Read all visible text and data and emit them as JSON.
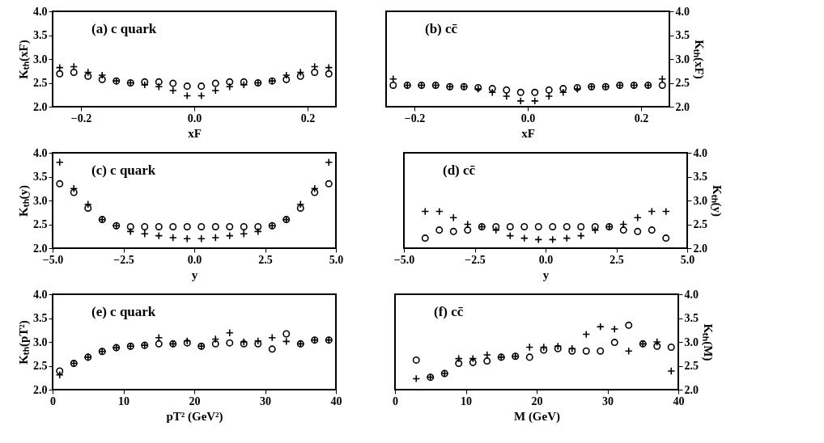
{
  "chart_data": [
    {
      "type": "scatter",
      "annotations": [
        "(a) c quark"
      ],
      "xlabel": "xF",
      "ylabel": "Kₜₕ(xF)",
      "x": [
        -0.2375,
        -0.2125,
        -0.1875,
        -0.1625,
        -0.1375,
        -0.1125,
        -0.0875,
        -0.0625,
        -0.0375,
        -0.0125,
        0.0125,
        0.0375,
        0.0625,
        0.0875,
        0.1125,
        0.1375,
        0.1625,
        0.1875,
        0.2125,
        0.2375
      ],
      "series": [
        {
          "color": "#000000",
          "marker": "circle",
          "values": [
            2.69,
            2.72,
            2.64,
            2.57,
            2.54,
            2.5,
            2.52,
            2.52,
            2.49,
            2.43,
            2.43,
            2.49,
            2.52,
            2.52,
            2.5,
            2.54,
            2.57,
            2.64,
            2.72,
            2.69
          ]
        },
        {
          "color": "#000000",
          "marker": "cross",
          "values": [
            2.82,
            2.84,
            2.72,
            2.66,
            2.54,
            2.5,
            2.46,
            2.42,
            2.34,
            2.23,
            2.23,
            2.34,
            2.42,
            2.46,
            2.5,
            2.54,
            2.66,
            2.72,
            2.84,
            2.82
          ]
        }
      ],
      "xlim": [
        -0.25,
        0.25
      ],
      "xticks": [
        {
          "value": -0.2,
          "label": "−0.2"
        },
        {
          "value": 0,
          "label": "0.0"
        },
        {
          "value": 0.2,
          "label": "0.2"
        }
      ],
      "ylim": [
        2,
        4
      ],
      "yticks": [
        {
          "value": 2,
          "label": "2.0"
        },
        {
          "value": 2.5,
          "label": "2.5"
        },
        {
          "value": 3,
          "label": "3.0"
        },
        {
          "value": 3.5,
          "label": "3.5"
        },
        {
          "value": 4,
          "label": "4.0"
        }
      ]
    },
    {
      "type": "scatter",
      "annotations": [
        "(b) cc̄"
      ],
      "xlabel": "xF",
      "y2label": "Kₜₕ(xF)",
      "x": [
        -0.2375,
        -0.2125,
        -0.1875,
        -0.1625,
        -0.1375,
        -0.1125,
        -0.0875,
        -0.0625,
        -0.0375,
        -0.0125,
        0.0125,
        0.0375,
        0.0625,
        0.0875,
        0.1125,
        0.1375,
        0.1625,
        0.1875,
        0.2125,
        0.2375
      ],
      "series": [
        {
          "color": "#000000",
          "marker": "circle",
          "axis": "y2",
          "values": [
            2.45,
            2.45,
            2.45,
            2.45,
            2.42,
            2.42,
            2.4,
            2.38,
            2.35,
            2.3,
            2.3,
            2.35,
            2.38,
            2.4,
            2.42,
            2.42,
            2.45,
            2.45,
            2.45,
            2.45
          ]
        },
        {
          "color": "#000000",
          "marker": "cross",
          "axis": "y2",
          "values": [
            2.58,
            2.45,
            2.45,
            2.45,
            2.42,
            2.42,
            2.37,
            2.3,
            2.22,
            2.12,
            2.12,
            2.22,
            2.3,
            2.37,
            2.42,
            2.42,
            2.45,
            2.45,
            2.45,
            2.58
          ]
        }
      ],
      "xlim": [
        -0.25,
        0.25
      ],
      "xticks": [
        {
          "value": -0.2,
          "label": "−0.2"
        },
        {
          "value": 0,
          "label": "0.0"
        },
        {
          "value": 0.2,
          "label": "0.2"
        }
      ],
      "y2lim": [
        2,
        4
      ],
      "y2ticks": [
        {
          "value": 2,
          "label": "2.0"
        },
        {
          "value": 2.5,
          "label": "2.5"
        },
        {
          "value": 3,
          "label": "3.0"
        },
        {
          "value": 3.5,
          "label": "3.5"
        },
        {
          "value": 4,
          "label": "4.0"
        }
      ]
    },
    {
      "type": "scatter",
      "annotations": [
        "(c) c quark"
      ],
      "xlabel": "y",
      "ylabel": "Kₜₕ(y)",
      "x": [
        -4.75,
        -4.25,
        -3.75,
        -3.25,
        -2.75,
        -2.25,
        -1.75,
        -1.25,
        -0.75,
        -0.25,
        0.25,
        0.75,
        1.25,
        1.75,
        2.25,
        2.75,
        3.25,
        3.75,
        4.25,
        4.75
      ],
      "series": [
        {
          "color": "#000000",
          "marker": "circle",
          "values": [
            3.35,
            3.17,
            2.84,
            2.6,
            2.47,
            2.45,
            2.45,
            2.45,
            2.45,
            2.45,
            2.45,
            2.45,
            2.45,
            2.45,
            2.45,
            2.47,
            2.6,
            2.84,
            3.17,
            3.35
          ]
        },
        {
          "color": "#000000",
          "marker": "cross",
          "values": [
            3.8,
            3.25,
            2.92,
            2.6,
            2.47,
            2.35,
            2.3,
            2.26,
            2.22,
            2.2,
            2.2,
            2.22,
            2.26,
            2.3,
            2.35,
            2.47,
            2.6,
            2.92,
            3.25,
            3.8
          ]
        }
      ],
      "xlim": [
        -5,
        5
      ],
      "xticks": [
        {
          "value": -5,
          "label": "−5.0"
        },
        {
          "value": -2.5,
          "label": "−2.5"
        },
        {
          "value": 0,
          "label": "0.0"
        },
        {
          "value": 2.5,
          "label": "2.5"
        },
        {
          "value": 5,
          "label": "5.0"
        }
      ],
      "ylim": [
        2,
        4
      ],
      "yticks": [
        {
          "value": 2,
          "label": "2.0"
        },
        {
          "value": 2.5,
          "label": "2.5"
        },
        {
          "value": 3,
          "label": "3.0"
        },
        {
          "value": 3.5,
          "label": "3.5"
        },
        {
          "value": 4,
          "label": "4.0"
        }
      ]
    },
    {
      "type": "scatter",
      "annotations": [
        "(d) cc̄"
      ],
      "xlabel": "y",
      "y2label": "Kₜₕ(y)",
      "x": [
        -4.25,
        -3.75,
        -3.25,
        -2.75,
        -2.25,
        -1.75,
        -1.25,
        -0.75,
        -0.25,
        0.25,
        0.75,
        1.25,
        1.75,
        2.25,
        2.75,
        3.25,
        3.75,
        4.25
      ],
      "series": [
        {
          "color": "#000000",
          "marker": "circle",
          "axis": "y2",
          "values": [
            2.21,
            2.38,
            2.35,
            2.38,
            2.45,
            2.45,
            2.45,
            2.45,
            2.45,
            2.45,
            2.45,
            2.45,
            2.45,
            2.45,
            2.38,
            2.35,
            2.38,
            2.21
          ]
        },
        {
          "color": "#000000",
          "marker": "cross",
          "axis": "y2",
          "values": [
            2.77,
            2.77,
            2.64,
            2.5,
            2.45,
            2.38,
            2.26,
            2.21,
            2.18,
            2.18,
            2.21,
            2.26,
            2.38,
            2.45,
            2.5,
            2.64,
            2.77,
            2.77
          ]
        }
      ],
      "xlim": [
        -5,
        5
      ],
      "xticks": [
        {
          "value": -5,
          "label": "−5.0"
        },
        {
          "value": -2.5,
          "label": "−2.5"
        },
        {
          "value": 0,
          "label": "0.0"
        },
        {
          "value": 2.5,
          "label": "2.5"
        },
        {
          "value": 5,
          "label": "5.0"
        }
      ],
      "y2lim": [
        2,
        4
      ],
      "y2ticks": [
        {
          "value": 2,
          "label": "2.0"
        },
        {
          "value": 2.5,
          "label": "2.5"
        },
        {
          "value": 3,
          "label": "3.0"
        },
        {
          "value": 3.5,
          "label": "3.5"
        },
        {
          "value": 4,
          "label": "4.0"
        }
      ]
    },
    {
      "type": "scatter",
      "annotations": [
        "(e) c quark"
      ],
      "xlabel": "pT² (GeV²)",
      "ylabel": "Kₜₕ(pT²)",
      "x": [
        1,
        3,
        5,
        7,
        9,
        11,
        13,
        15,
        17,
        19,
        21,
        23,
        25,
        27,
        29,
        31,
        33,
        35,
        37,
        39
      ],
      "series": [
        {
          "color": "#000000",
          "marker": "circle",
          "values": [
            2.39,
            2.55,
            2.68,
            2.8,
            2.88,
            2.91,
            2.93,
            2.96,
            2.96,
            2.98,
            2.91,
            2.96,
            2.98,
            2.96,
            2.96,
            2.85,
            3.17,
            2.96,
            3.04,
            3.04
          ]
        },
        {
          "color": "#000000",
          "marker": "cross",
          "values": [
            2.31,
            2.55,
            2.68,
            2.8,
            2.88,
            2.91,
            2.93,
            3.09,
            2.96,
            3.02,
            2.91,
            3.06,
            3.19,
            3.0,
            3.02,
            3.09,
            3.01,
            2.96,
            3.04,
            3.04
          ]
        }
      ],
      "xlim": [
        0,
        40
      ],
      "xticks": [
        0,
        10,
        20,
        30,
        40
      ],
      "ylim": [
        2,
        4
      ],
      "yticks": [
        {
          "value": 2,
          "label": "2.0"
        },
        {
          "value": 2.5,
          "label": "2.5"
        },
        {
          "value": 3,
          "label": "3.0"
        },
        {
          "value": 3.5,
          "label": "3.5"
        },
        {
          "value": 4,
          "label": "4.0"
        }
      ]
    },
    {
      "type": "scatter",
      "annotations": [
        "(f) cc̄"
      ],
      "xlabel": "M (GeV)",
      "y2label": "Kₜₕ(M)",
      "x": [
        3,
        5,
        7,
        9,
        11,
        13,
        15,
        17,
        19,
        21,
        23,
        25,
        27,
        29,
        31,
        33,
        35,
        37,
        39
      ],
      "series": [
        {
          "color": "#000000",
          "marker": "circle",
          "axis": "y2",
          "values": [
            2.62,
            2.26,
            2.34,
            2.55,
            2.57,
            2.6,
            2.68,
            2.7,
            2.68,
            2.83,
            2.86,
            2.81,
            2.81,
            2.81,
            2.99,
            3.35,
            2.96,
            2.91,
            2.89
          ]
        },
        {
          "color": "#000000",
          "marker": "cross",
          "axis": "y2",
          "values": [
            2.23,
            2.26,
            2.34,
            2.65,
            2.65,
            2.73,
            2.68,
            2.7,
            2.89,
            2.89,
            2.91,
            2.86,
            3.16,
            3.32,
            3.27,
            2.81,
            2.96,
            3.0,
            2.39
          ]
        }
      ],
      "xlim": [
        0,
        40
      ],
      "xticks": [
        0,
        10,
        20,
        30,
        40
      ],
      "y2lim": [
        2,
        4
      ],
      "y2ticks": [
        {
          "value": 2,
          "label": "2.0"
        },
        {
          "value": 2.5,
          "label": "2.5"
        },
        {
          "value": 3,
          "label": "3.0"
        },
        {
          "value": 3.5,
          "label": "3.5"
        },
        {
          "value": 4,
          "label": "4.0"
        }
      ]
    }
  ]
}
